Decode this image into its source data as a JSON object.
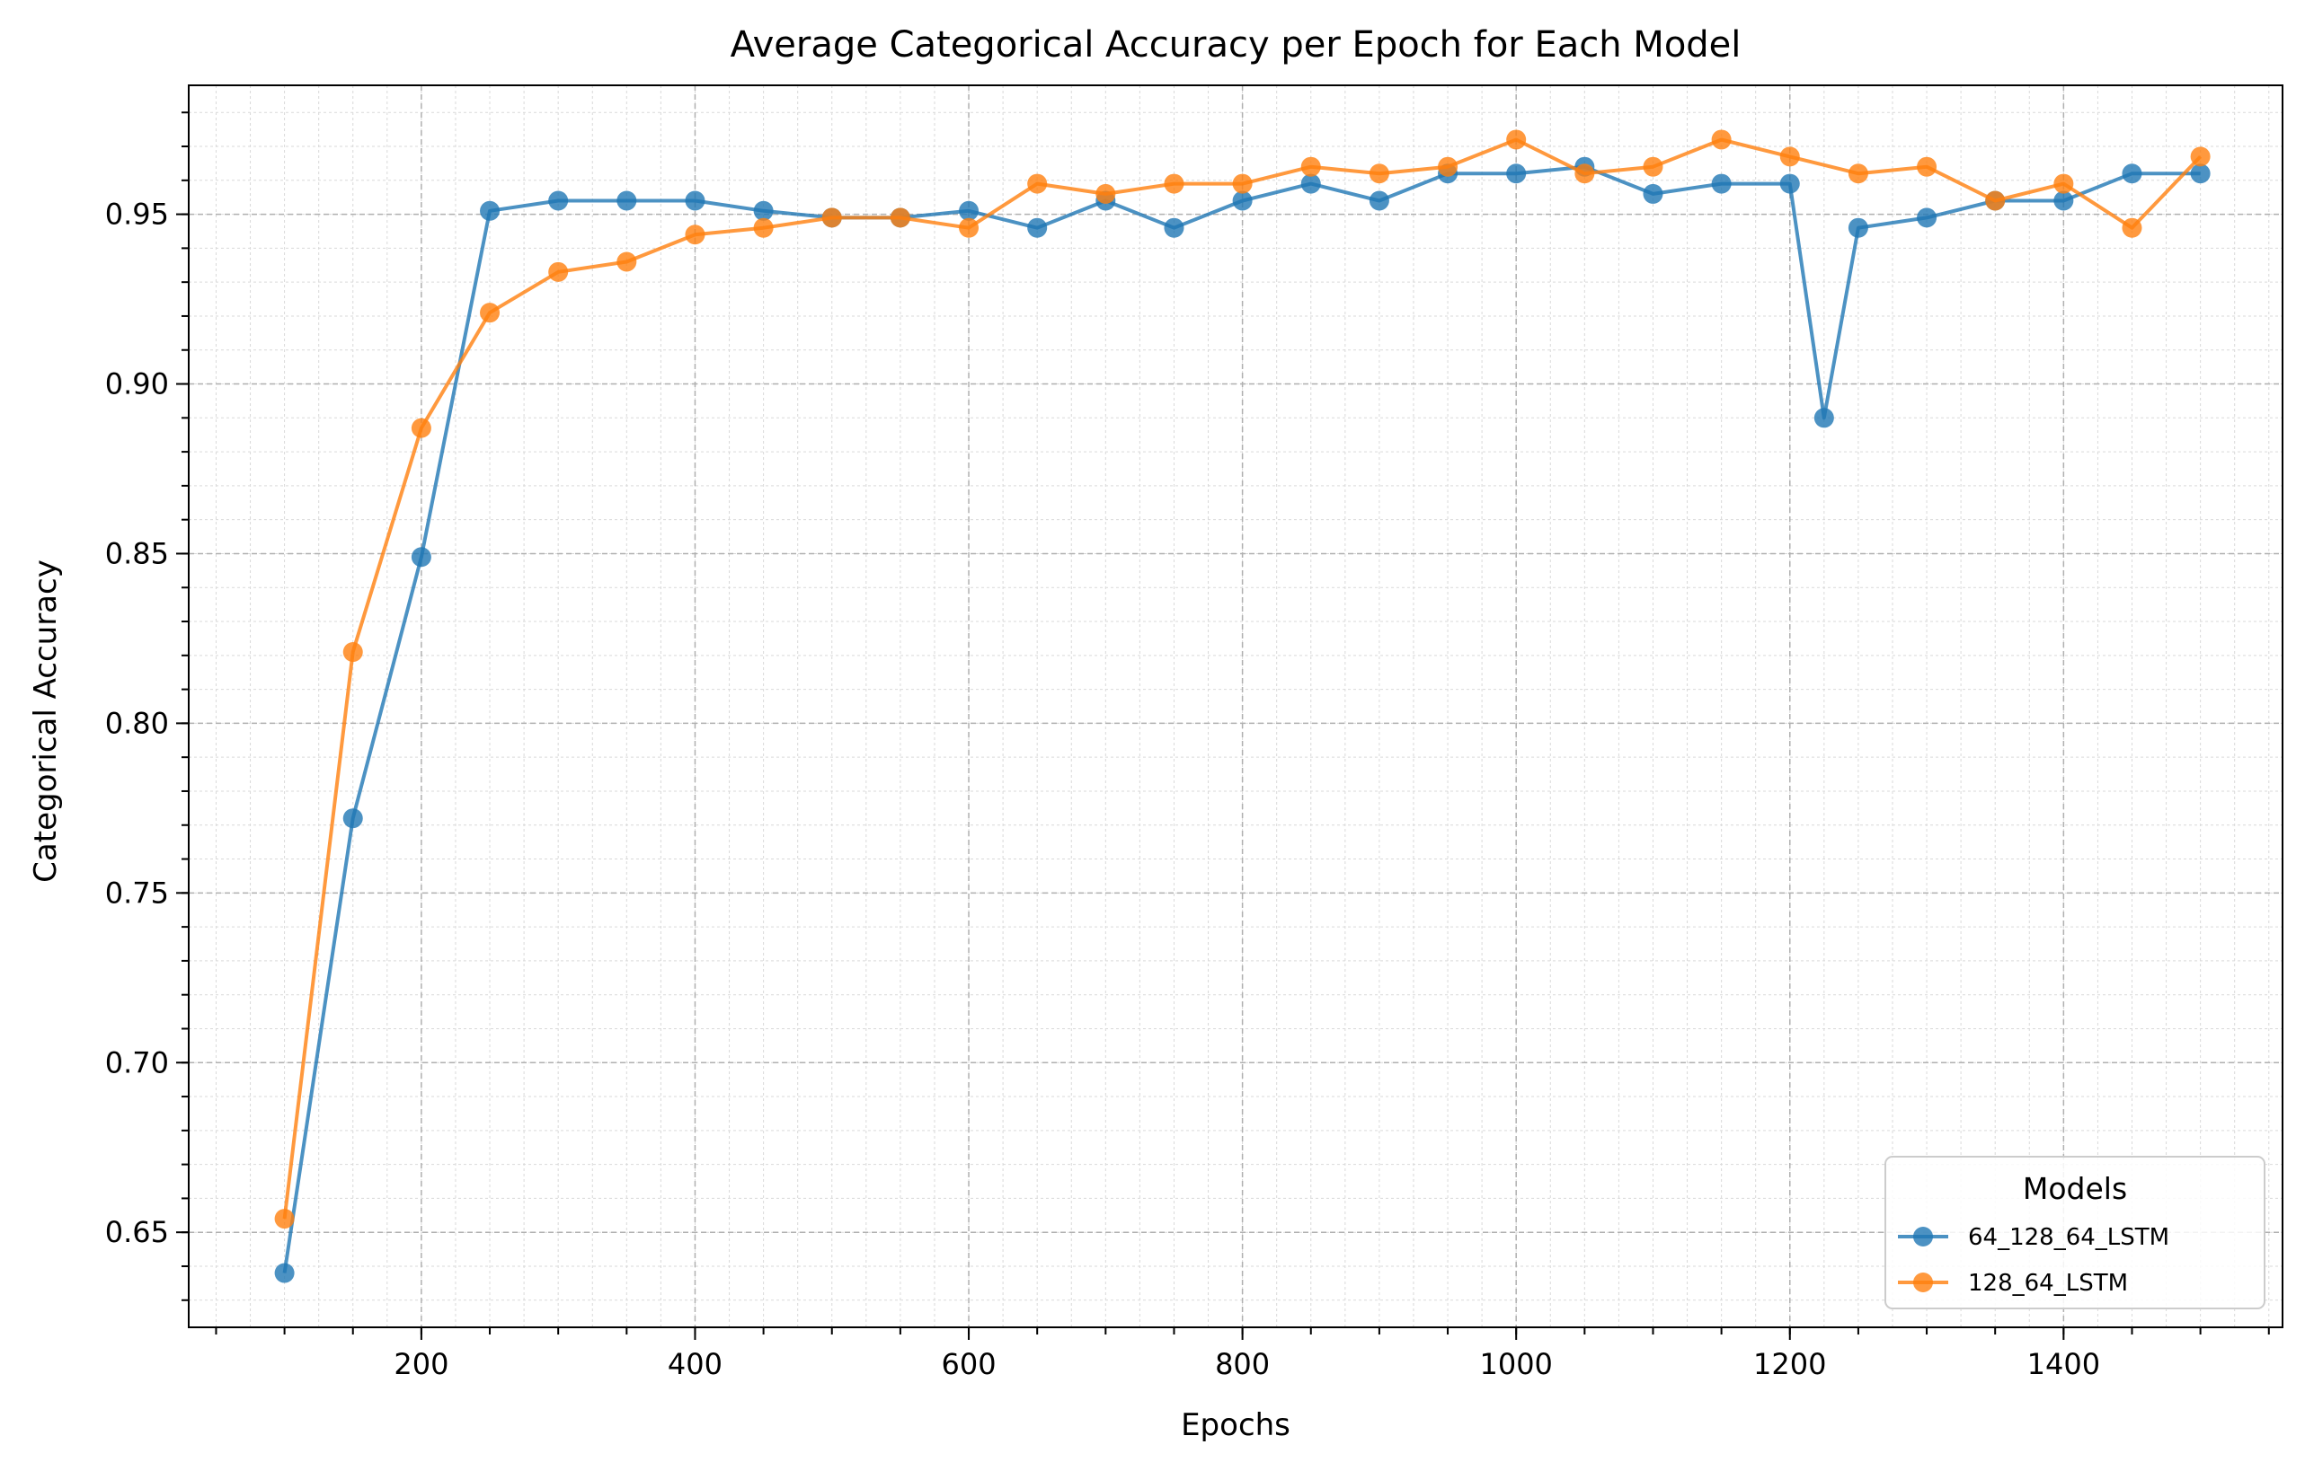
{
  "chart_data": {
    "type": "line",
    "title": "Average Categorical Accuracy per Epoch for Each Model",
    "xlabel": "Epochs",
    "ylabel": "Categorical Accuracy",
    "xlim": [
      30,
      1560
    ],
    "ylim": [
      0.622,
      0.988
    ],
    "xticks": [
      200,
      400,
      600,
      800,
      1000,
      1200,
      1400
    ],
    "xtick_labels": [
      "200",
      "400",
      "600",
      "800",
      "1000",
      "1200",
      "1400"
    ],
    "yticks": [
      0.65,
      0.7,
      0.75,
      0.8,
      0.85,
      0.9,
      0.95
    ],
    "ytick_labels": [
      "0.65",
      "0.70",
      "0.75",
      "0.80",
      "0.85",
      "0.90",
      "0.95"
    ],
    "grid": true,
    "legend": {
      "title": "Models",
      "position": "lower-right"
    },
    "series": [
      {
        "name": "64_128_64_LSTM",
        "color": "#1f77b4",
        "x": [
          100,
          150,
          200,
          250,
          300,
          350,
          400,
          450,
          500,
          550,
          600,
          650,
          700,
          750,
          800,
          850,
          900,
          950,
          1000,
          1050,
          1100,
          1150,
          1200,
          1225,
          1250,
          1300,
          1350,
          1400,
          1450,
          1500
        ],
        "values": [
          0.638,
          0.772,
          0.849,
          0.951,
          0.954,
          0.954,
          0.954,
          0.951,
          0.949,
          0.949,
          0.951,
          0.946,
          0.954,
          0.946,
          0.954,
          0.959,
          0.954,
          0.962,
          0.962,
          0.964,
          0.956,
          0.959,
          0.959,
          0.89,
          0.946,
          0.949,
          0.954,
          0.954,
          0.962,
          0.962
        ]
      },
      {
        "name": "128_64_LSTM",
        "color": "#ff7f0e",
        "x": [
          100,
          150,
          200,
          250,
          300,
          350,
          400,
          450,
          500,
          550,
          600,
          650,
          700,
          750,
          800,
          850,
          900,
          950,
          1000,
          1050,
          1100,
          1150,
          1200,
          1250,
          1300,
          1350,
          1400,
          1450,
          1500
        ],
        "values": [
          0.654,
          0.821,
          0.887,
          0.921,
          0.933,
          0.936,
          0.944,
          0.946,
          0.949,
          0.949,
          0.946,
          0.959,
          0.956,
          0.959,
          0.959,
          0.964,
          0.962,
          0.964,
          0.972,
          0.962,
          0.964,
          0.972,
          0.967,
          0.962,
          0.964,
          0.954,
          0.959,
          0.946,
          0.967
        ]
      }
    ]
  }
}
